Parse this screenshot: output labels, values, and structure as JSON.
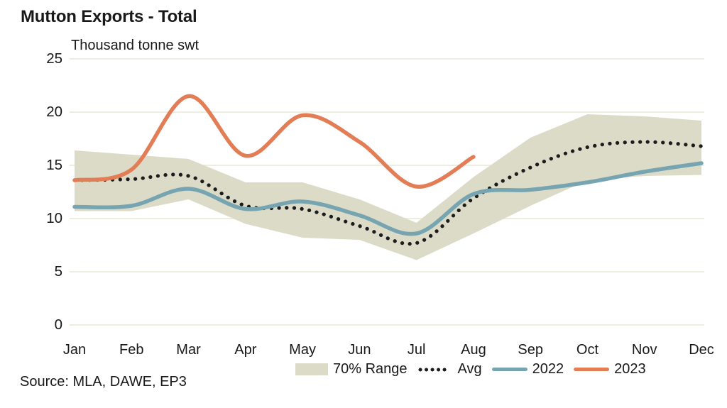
{
  "title": "Mutton Exports - Total",
  "subtitle": "Thousand tonne swt",
  "source_note": "Source: MLA, DAWE, EP3",
  "colors": {
    "range_band": "#DBDBC8",
    "avg_dots": "#1C1C1C",
    "line_2022": "#76A5B1",
    "line_2023": "#E27D55",
    "gridline": "#EDEDE0",
    "text": "#191919"
  },
  "legend": [
    {
      "label": "70% Range",
      "swatch": "band"
    },
    {
      "label": "Avg",
      "swatch": "dotted"
    },
    {
      "label": "2022",
      "swatch": "line-2022"
    },
    {
      "label": "2023",
      "swatch": "line-2023"
    }
  ],
  "chart_data": {
    "type": "line",
    "title": "Mutton Exports - Total",
    "ylabel": "Thousand tonne swt",
    "ylim": [
      0,
      25
    ],
    "yticks": [
      0,
      5,
      10,
      15,
      20,
      25
    ],
    "grid": "horizontal",
    "legend_position": "bottom",
    "categories": [
      "Jan",
      "Feb",
      "Mar",
      "Apr",
      "May",
      "Jun",
      "Jul",
      "Aug",
      "Sep",
      "Oct",
      "Nov",
      "Dec"
    ],
    "series": [
      {
        "name": "70% Range",
        "type": "band",
        "color": "#DBDBC8",
        "low": [
          10.7,
          10.7,
          11.8,
          9.5,
          8.2,
          8.0,
          6.1,
          8.6,
          11.2,
          13.6,
          14.0,
          14.1
        ],
        "high": [
          16.4,
          16.0,
          15.6,
          13.4,
          13.4,
          11.8,
          9.6,
          13.9,
          17.6,
          19.8,
          19.6,
          19.2
        ]
      },
      {
        "name": "Avg",
        "type": "line",
        "style": "dotted",
        "color": "#1C1C1C",
        "values": [
          13.6,
          13.7,
          14.0,
          11.2,
          10.9,
          9.3,
          7.7,
          11.9,
          14.8,
          16.7,
          17.2,
          16.8
        ]
      },
      {
        "name": "2022",
        "type": "line",
        "style": "solid",
        "color": "#76A5B1",
        "values": [
          11.1,
          11.2,
          12.8,
          10.9,
          11.6,
          10.3,
          8.6,
          12.3,
          12.7,
          13.4,
          14.4,
          15.2
        ]
      },
      {
        "name": "2023",
        "type": "line",
        "style": "solid",
        "color": "#E27D55",
        "values": [
          13.6,
          14.6,
          21.5,
          15.9,
          19.7,
          17.2,
          13.0,
          15.8,
          null,
          null,
          null,
          null
        ]
      }
    ]
  }
}
